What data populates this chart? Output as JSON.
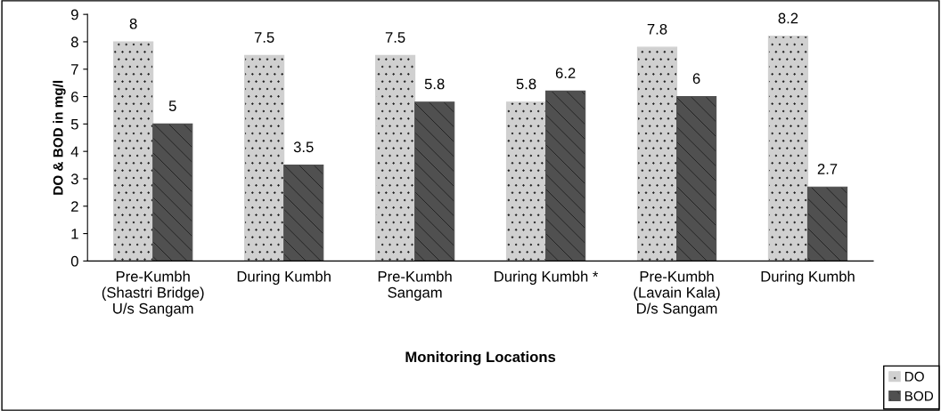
{
  "chart_data": {
    "type": "bar",
    "xlabel": "Monitoring Locations",
    "ylabel": "DO & BOD in mg/l",
    "categories": [
      "Pre-Kumbh\n(Shastri Bridge)\nU/s Sangam",
      "During Kumbh",
      "Pre-Kumbh\nSangam",
      "During Kumbh *",
      "Pre-Kumbh\n(Lavain Kala)\nD/s Sangam",
      "During Kumbh"
    ],
    "series": [
      {
        "name": "DO",
        "color": "#d0d0d0",
        "values": [
          8,
          7.5,
          7.5,
          5.8,
          7.8,
          8.2
        ]
      },
      {
        "name": "BOD",
        "color": "#505050",
        "values": [
          5,
          3.5,
          5.8,
          6.2,
          6,
          2.7
        ]
      }
    ],
    "ylim": [
      0,
      9
    ],
    "yticks": [
      0,
      1,
      2,
      3,
      4,
      5,
      6,
      7,
      8,
      9
    ],
    "data_labels": true,
    "legend": "bottom right",
    "grid": false
  }
}
